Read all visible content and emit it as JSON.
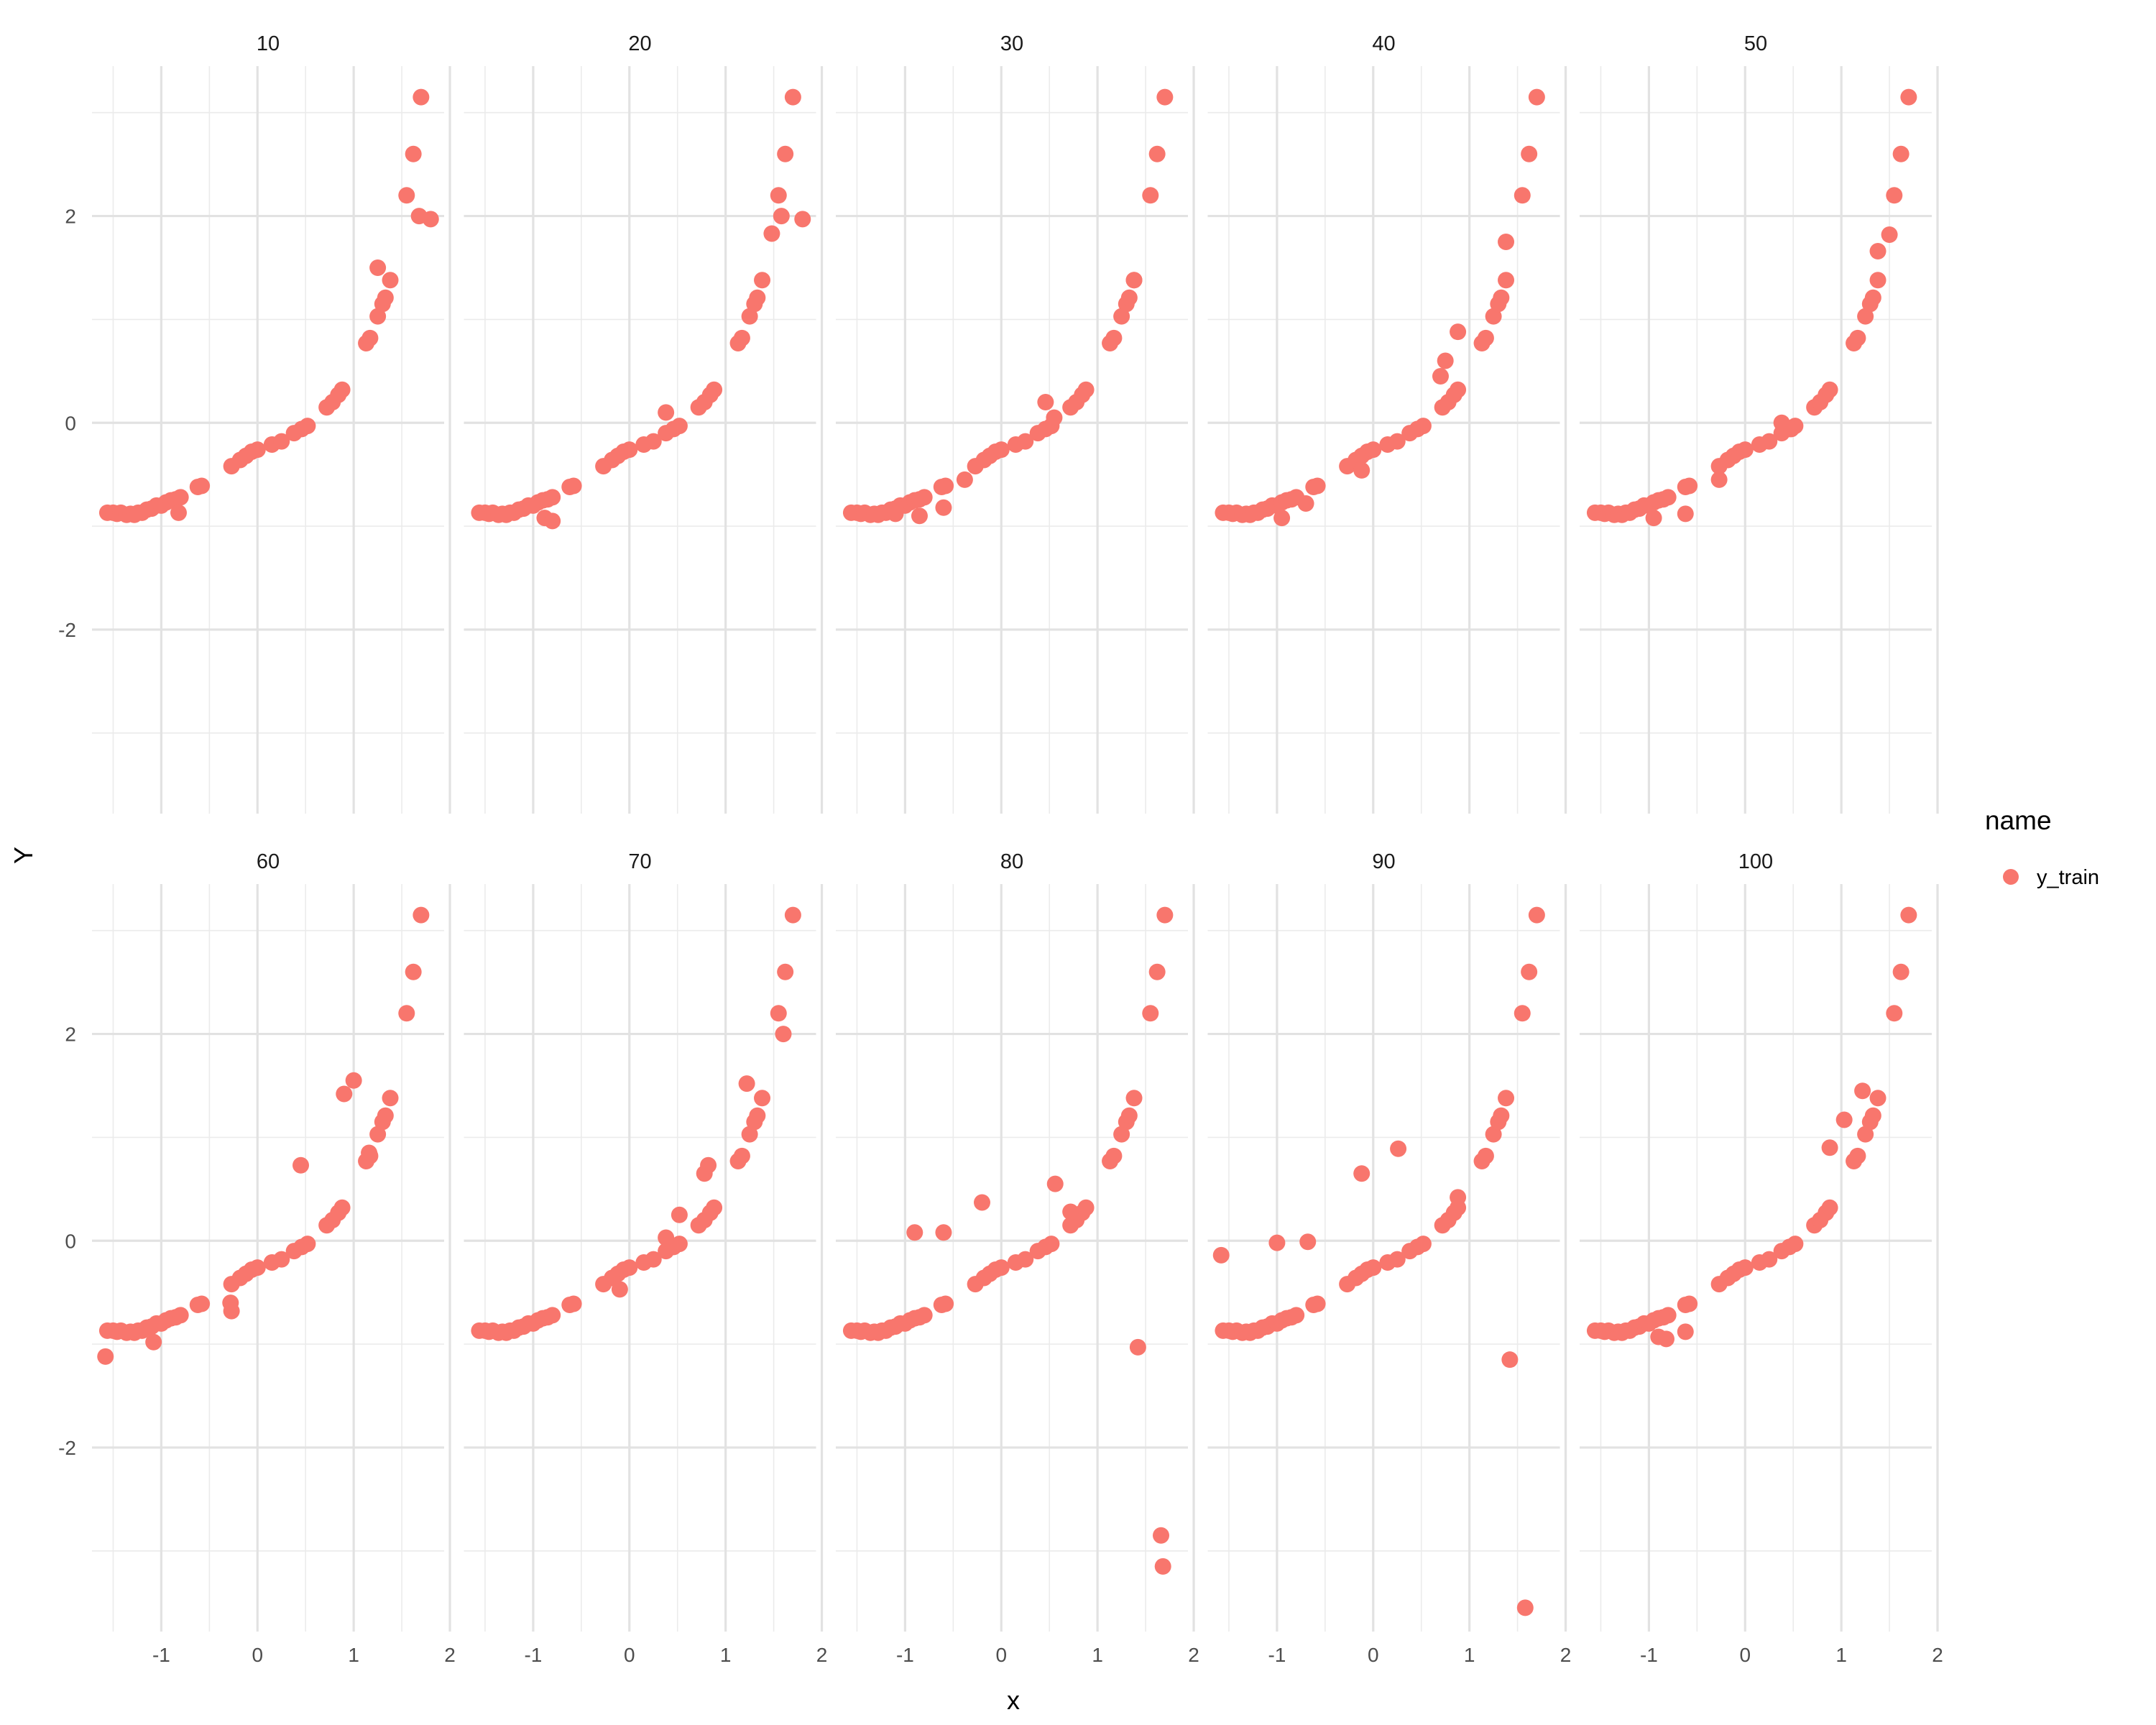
{
  "chart_data": {
    "type": "scatter",
    "facet_labels": [
      "10",
      "20",
      "30",
      "40",
      "50",
      "60",
      "70",
      "80",
      "90",
      "100"
    ],
    "xlabel": "x",
    "ylabel": "Y",
    "xlim": [
      -1.72,
      1.94
    ],
    "ylim": [
      -3.78,
      3.45
    ],
    "x_ticks": [
      -1,
      0,
      1,
      2
    ],
    "x_tick_labels": [
      "-1",
      "0",
      "1",
      "2"
    ],
    "y_ticks": [
      -2,
      0,
      2
    ],
    "y_tick_labels": [
      "-2",
      "0",
      "2"
    ],
    "grid": true,
    "legend": {
      "title": "name",
      "position": "right",
      "entries": [
        {
          "label": "y_train",
          "color": "#F8766D"
        }
      ]
    },
    "series_color": "#F8766D",
    "base_points": [
      [
        -1.56,
        -0.87
      ],
      [
        -1.5,
        -0.87
      ],
      [
        -1.46,
        -0.88
      ],
      [
        -1.42,
        -0.87
      ],
      [
        -1.36,
        -0.89
      ],
      [
        -1.32,
        -0.88
      ],
      [
        -1.28,
        -0.89
      ],
      [
        -1.24,
        -0.87
      ],
      [
        -1.2,
        -0.87
      ],
      [
        -1.15,
        -0.84
      ],
      [
        -1.1,
        -0.83
      ],
      [
        -1.05,
        -0.8
      ],
      [
        -1.0,
        -0.8
      ],
      [
        -0.95,
        -0.77
      ],
      [
        -0.9,
        -0.75
      ],
      [
        -0.85,
        -0.74
      ],
      [
        -0.8,
        -0.72
      ],
      [
        -0.62,
        -0.62
      ],
      [
        -0.58,
        -0.61
      ],
      [
        -0.27,
        -0.42
      ],
      [
        -0.18,
        -0.36
      ],
      [
        -0.12,
        -0.32
      ],
      [
        -0.06,
        -0.28
      ],
      [
        0.0,
        -0.26
      ],
      [
        0.15,
        -0.21
      ],
      [
        0.25,
        -0.18
      ],
      [
        0.38,
        -0.1
      ],
      [
        0.46,
        -0.06
      ],
      [
        0.52,
        -0.03
      ],
      [
        0.72,
        0.15
      ],
      [
        0.78,
        0.2
      ],
      [
        0.84,
        0.27
      ],
      [
        0.88,
        0.32
      ],
      [
        1.13,
        0.77
      ],
      [
        1.17,
        0.82
      ],
      [
        1.25,
        1.03
      ],
      [
        1.3,
        1.15
      ],
      [
        1.33,
        1.21
      ],
      [
        1.38,
        1.38
      ],
      [
        1.55,
        2.2
      ],
      [
        1.62,
        2.6
      ],
      [
        1.7,
        3.15
      ]
    ],
    "facet_extra_points": [
      [
        [
          -0.82,
          -0.87
        ],
        [
          1.25,
          1.5
        ],
        [
          1.68,
          2.0
        ],
        [
          1.8,
          1.97
        ]
      ],
      [
        [
          -0.88,
          -0.92
        ],
        [
          -0.8,
          -0.95
        ],
        [
          0.38,
          0.1
        ],
        [
          1.48,
          1.83
        ],
        [
          1.58,
          2.0
        ],
        [
          1.8,
          1.97
        ]
      ],
      [
        [
          -1.1,
          -0.88
        ],
        [
          -0.85,
          -0.9
        ],
        [
          -0.6,
          -0.82
        ],
        [
          -0.38,
          -0.55
        ],
        [
          0.46,
          0.2
        ],
        [
          0.55,
          0.05
        ],
        [
          1.38,
          1.38
        ]
      ],
      [
        [
          -0.95,
          -0.92
        ],
        [
          -0.7,
          -0.78
        ],
        [
          -0.12,
          -0.46
        ],
        [
          0.7,
          0.45
        ],
        [
          0.75,
          0.6
        ],
        [
          0.88,
          0.88
        ],
        [
          1.38,
          1.75
        ]
      ],
      [
        [
          -0.95,
          -0.92
        ],
        [
          -0.62,
          -0.88
        ],
        [
          -0.27,
          -0.55
        ],
        [
          0.38,
          0.0
        ],
        [
          0.48,
          -0.06
        ],
        [
          1.38,
          1.66
        ],
        [
          1.5,
          1.82
        ]
      ],
      [
        [
          -1.58,
          -1.12
        ],
        [
          -1.08,
          -0.98
        ],
        [
          -0.28,
          -0.6
        ],
        [
          -0.27,
          -0.68
        ],
        [
          0.45,
          0.73
        ],
        [
          0.9,
          1.42
        ],
        [
          1.0,
          1.55
        ],
        [
          1.16,
          0.85
        ]
      ],
      [
        [
          -0.1,
          -0.47
        ],
        [
          0.38,
          0.03
        ],
        [
          0.52,
          0.25
        ],
        [
          0.78,
          0.65
        ],
        [
          0.82,
          0.73
        ],
        [
          1.22,
          1.52
        ],
        [
          1.6,
          2.0
        ]
      ],
      [
        [
          -0.9,
          0.08
        ],
        [
          -0.6,
          0.08
        ],
        [
          -0.2,
          0.37
        ],
        [
          0.56,
          0.55
        ],
        [
          0.72,
          0.28
        ],
        [
          1.42,
          -1.03
        ],
        [
          1.66,
          -2.85
        ],
        [
          1.68,
          -3.15
        ]
      ],
      [
        [
          -1.58,
          -0.14
        ],
        [
          -1.0,
          -0.02
        ],
        [
          -0.68,
          -0.01
        ],
        [
          -0.12,
          0.65
        ],
        [
          0.26,
          0.89
        ],
        [
          0.88,
          0.42
        ],
        [
          1.42,
          -1.15
        ],
        [
          1.58,
          -3.55
        ]
      ],
      [
        [
          -0.9,
          -0.93
        ],
        [
          -0.82,
          -0.95
        ],
        [
          -0.62,
          -0.88
        ],
        [
          0.88,
          0.9
        ],
        [
          1.03,
          1.17
        ],
        [
          1.22,
          1.45
        ]
      ]
    ]
  }
}
